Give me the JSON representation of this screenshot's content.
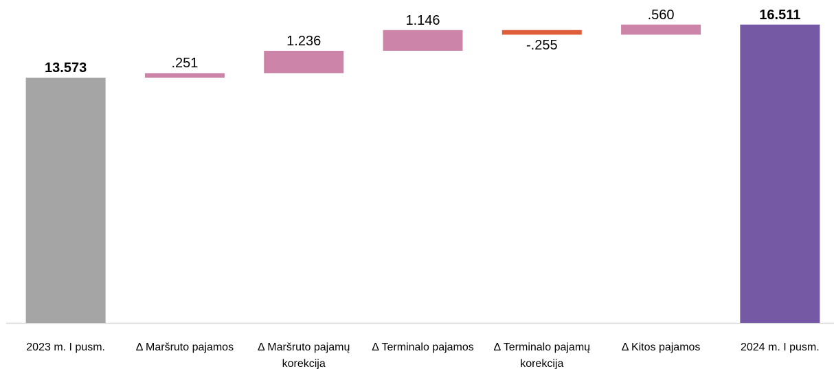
{
  "chart_data": {
    "type": "waterfall",
    "categories": [
      "2023 m. I pusm.",
      "Δ Maršruto pajamos",
      "Δ Maršruto pajamų korekcija",
      "Δ Terminalo pajamos",
      "Δ Terminalo pajamų korekcija",
      "Δ Kitos pajamos",
      "2024 m. I pusm."
    ],
    "values": [
      13.573,
      0.251,
      1.236,
      1.146,
      -0.255,
      0.56,
      16.511
    ],
    "value_labels": [
      "13.573",
      ".251",
      "1.236",
      "1.146",
      "-.255",
      ".560",
      "16.511"
    ],
    "measure": [
      "absolute",
      "relative",
      "relative",
      "relative",
      "relative",
      "relative",
      "absolute"
    ],
    "colors": [
      "#a5a5a5",
      "#cc85a8",
      "#cc85a8",
      "#cc85a8",
      "#de5e3a",
      "#cc85a8",
      "#7659a4"
    ],
    "ylim": [
      0,
      17.87
    ]
  }
}
